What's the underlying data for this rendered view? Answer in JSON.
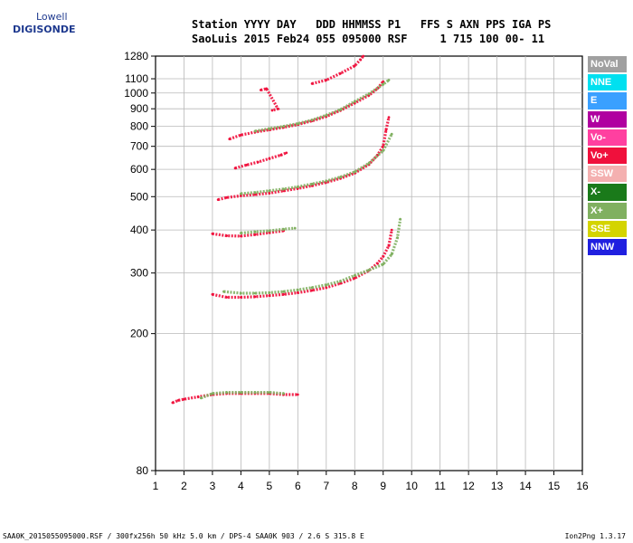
{
  "logo": {
    "line1": "Lowell",
    "line2": "DIGISONDE"
  },
  "header": {
    "line1": "Station YYYY DAY   DDD HHMMSS P1   FFS S AXN PPS IGA PS",
    "line2": "SaoLuis 2015 Feb24 055 095000 RSF     1 715 100 00- 11"
  },
  "footer": {
    "left": "SAA0K_2015055095000.RSF / 300fx256h 50 kHz 5.0 km / DPS-4 SAA0K 903 / 2.6 S 315.8 E",
    "right": "Ion2Png 1.3.17"
  },
  "legend": [
    {
      "label": "NoVal",
      "color": "#a0a0a0"
    },
    {
      "label": "NNE",
      "color": "#00e0f0"
    },
    {
      "label": "E",
      "color": "#3aa0ff"
    },
    {
      "label": "W",
      "color": "#b000a0"
    },
    {
      "label": "Vo-",
      "color": "#ff40a0"
    },
    {
      "label": "Vo+",
      "color": "#f0103c"
    },
    {
      "label": "SSW",
      "color": "#f4b0b0"
    },
    {
      "label": "X-",
      "color": "#1a7a1a"
    },
    {
      "label": "X+",
      "color": "#80b060"
    },
    {
      "label": "SSE",
      "color": "#d4d400"
    },
    {
      "label": "NNW",
      "color": "#2020e0"
    }
  ],
  "chart_data": {
    "type": "scatter",
    "x_ticks": [
      "1",
      "2",
      "3",
      "4",
      "5",
      "6",
      "7",
      "8",
      "9",
      "10",
      "11",
      "12",
      "13",
      "14",
      "15",
      "16"
    ],
    "y_ticks": [
      "80",
      "200",
      "300",
      "400",
      "500",
      "600",
      "700",
      "800",
      "900",
      "1000",
      "1100",
      "1280"
    ],
    "xlim": [
      1,
      16
    ],
    "ylim": [
      80,
      1280
    ],
    "y_scale": "logarithmic",
    "grid": true,
    "legend_position": "right",
    "traces": [
      {
        "name": "Vo+",
        "color": "#f0103c",
        "points": [
          [
            1.6,
            126
          ],
          [
            1.8,
            128
          ],
          [
            2.0,
            129
          ],
          [
            2.5,
            131
          ],
          [
            3.0,
            133
          ],
          [
            3.5,
            134
          ],
          [
            4.0,
            134
          ],
          [
            4.5,
            134
          ],
          [
            5.0,
            134
          ],
          [
            5.5,
            133
          ],
          [
            6.0,
            133
          ]
        ]
      },
      {
        "name": "X+",
        "color": "#80b060",
        "points": [
          [
            2.6,
            130
          ],
          [
            3.0,
            134
          ],
          [
            3.5,
            135
          ],
          [
            4.0,
            135
          ],
          [
            4.5,
            135
          ],
          [
            5.0,
            135
          ],
          [
            5.5,
            134
          ]
        ]
      },
      {
        "name": "Vo+",
        "color": "#f0103c",
        "points": [
          [
            3.0,
            260
          ],
          [
            3.5,
            255
          ],
          [
            4.0,
            255
          ],
          [
            4.5,
            256
          ],
          [
            5.0,
            258
          ],
          [
            5.5,
            260
          ],
          [
            6.0,
            263
          ],
          [
            6.5,
            267
          ],
          [
            7.0,
            272
          ],
          [
            7.5,
            280
          ],
          [
            8.0,
            290
          ],
          [
            8.5,
            305
          ],
          [
            8.8,
            320
          ],
          [
            9.0,
            335
          ],
          [
            9.2,
            360
          ],
          [
            9.3,
            400
          ]
        ]
      },
      {
        "name": "X+",
        "color": "#80b060",
        "points": [
          [
            3.4,
            265
          ],
          [
            4.0,
            262
          ],
          [
            4.5,
            262
          ],
          [
            5.0,
            263
          ],
          [
            5.5,
            265
          ],
          [
            6.0,
            268
          ],
          [
            6.5,
            272
          ],
          [
            7.0,
            277
          ],
          [
            7.5,
            284
          ],
          [
            8.0,
            295
          ],
          [
            8.5,
            306
          ],
          [
            9.0,
            318
          ],
          [
            9.3,
            340
          ],
          [
            9.5,
            380
          ],
          [
            9.6,
            430
          ]
        ]
      },
      {
        "name": "Vo+",
        "color": "#f0103c",
        "points": [
          [
            3.0,
            390
          ],
          [
            3.5,
            385
          ],
          [
            4.0,
            384
          ],
          [
            4.5,
            388
          ],
          [
            5.0,
            393
          ],
          [
            5.5,
            398
          ]
        ]
      },
      {
        "name": "X+",
        "color": "#80b060",
        "points": [
          [
            4.0,
            392
          ],
          [
            4.5,
            395
          ],
          [
            5.0,
            398
          ],
          [
            5.5,
            402
          ],
          [
            5.9,
            405
          ]
        ]
      },
      {
        "name": "Vo+",
        "color": "#f0103c",
        "points": [
          [
            3.2,
            490
          ],
          [
            3.5,
            497
          ],
          [
            4.0,
            503
          ],
          [
            4.5,
            507
          ],
          [
            5.0,
            512
          ],
          [
            5.5,
            520
          ],
          [
            6.0,
            528
          ],
          [
            6.5,
            538
          ],
          [
            7.0,
            550
          ],
          [
            7.5,
            565
          ],
          [
            8.0,
            585
          ],
          [
            8.5,
            620
          ],
          [
            8.8,
            660
          ],
          [
            9.0,
            700
          ],
          [
            9.1,
            780
          ],
          [
            9.2,
            850
          ]
        ]
      },
      {
        "name": "X+",
        "color": "#80b060",
        "points": [
          [
            4.0,
            510
          ],
          [
            4.5,
            514
          ],
          [
            5.0,
            520
          ],
          [
            5.5,
            526
          ],
          [
            6.0,
            534
          ],
          [
            6.5,
            544
          ],
          [
            7.0,
            555
          ],
          [
            7.5,
            570
          ],
          [
            8.0,
            590
          ],
          [
            8.5,
            625
          ],
          [
            9.0,
            680
          ],
          [
            9.3,
            760
          ]
        ]
      },
      {
        "name": "Vo+",
        "color": "#f0103c",
        "points": [
          [
            3.8,
            605
          ],
          [
            4.2,
            618
          ],
          [
            4.6,
            630
          ],
          [
            5.0,
            645
          ],
          [
            5.4,
            660
          ],
          [
            5.6,
            670
          ]
        ]
      },
      {
        "name": "Vo+",
        "color": "#f0103c",
        "points": [
          [
            3.6,
            735
          ],
          [
            4.0,
            755
          ],
          [
            4.5,
            770
          ],
          [
            5.0,
            782
          ],
          [
            5.5,
            795
          ],
          [
            6.0,
            810
          ],
          [
            6.5,
            830
          ],
          [
            7.0,
            855
          ],
          [
            7.5,
            890
          ],
          [
            8.0,
            935
          ],
          [
            8.5,
            985
          ],
          [
            8.8,
            1030
          ],
          [
            9.0,
            1080
          ]
        ]
      },
      {
        "name": "X+",
        "color": "#80b060",
        "points": [
          [
            4.5,
            775
          ],
          [
            5.0,
            788
          ],
          [
            5.5,
            800
          ],
          [
            6.0,
            815
          ],
          [
            6.5,
            835
          ],
          [
            7.0,
            862
          ],
          [
            7.5,
            895
          ],
          [
            8.0,
            945
          ],
          [
            8.5,
            995
          ],
          [
            9.0,
            1060
          ],
          [
            9.2,
            1090
          ]
        ]
      },
      {
        "name": "Vo+",
        "color": "#f0103c",
        "points": [
          [
            6.5,
            1065
          ],
          [
            7.0,
            1090
          ],
          [
            7.5,
            1140
          ],
          [
            8.0,
            1200
          ],
          [
            8.2,
            1250
          ],
          [
            8.3,
            1280
          ]
        ]
      },
      {
        "name": "Vo+",
        "color": "#f0103c",
        "points": [
          [
            4.7,
            1020
          ],
          [
            4.9,
            1030
          ],
          [
            5.3,
            900
          ],
          [
            5.1,
            890
          ]
        ]
      }
    ]
  }
}
